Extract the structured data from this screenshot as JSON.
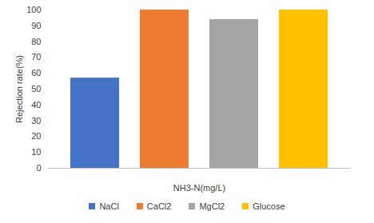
{
  "chart_data": {
    "type": "bar",
    "categories": [
      null
    ],
    "series": [
      {
        "name": "NaCl",
        "color": "#4472c4",
        "values": [
          57
        ]
      },
      {
        "name": "CaCl2",
        "color": "#ed7d31",
        "values": [
          100
        ]
      },
      {
        "name": "MgCl2",
        "color": "#a5a5a5",
        "values": [
          94
        ]
      },
      {
        "name": "Glucose",
        "color": "#ffc000",
        "values": [
          100
        ]
      }
    ],
    "x_label": "NH3-N(mg/L)",
    "y_label": "Rejection rate(%)",
    "ylim": [
      0,
      100
    ],
    "yticks": [
      0,
      10,
      20,
      30,
      40,
      50,
      60,
      70,
      80,
      90,
      100
    ],
    "grid": false,
    "legend": "bottom",
    "tick_labels": "y"
  }
}
